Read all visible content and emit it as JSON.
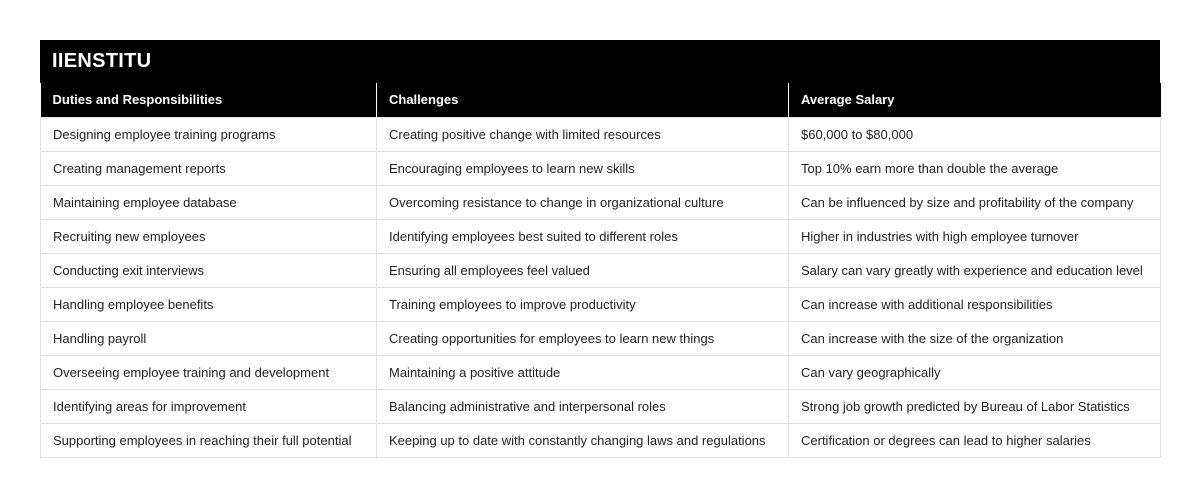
{
  "title": "IIENSTITU",
  "headers": [
    "Duties and Responsibilities",
    "Challenges",
    "Average Salary"
  ],
  "rows": [
    [
      "Designing employee training programs",
      "Creating positive change with limited resources",
      "$60,000 to $80,000"
    ],
    [
      "Creating management reports",
      "Encouraging employees to learn new skills",
      "Top 10% earn more than double the average"
    ],
    [
      "Maintaining employee database",
      "Overcoming resistance to change in organizational culture",
      "Can be influenced by size and profitability of the company"
    ],
    [
      "Recruiting new employees",
      "Identifying employees best suited to different roles",
      "Higher in industries with high employee turnover"
    ],
    [
      "Conducting exit interviews",
      "Ensuring all employees feel valued",
      "Salary can vary greatly with experience and education level"
    ],
    [
      "Handling employee benefits",
      "Training employees to improve productivity",
      "Can increase with additional responsibilities"
    ],
    [
      "Handling payroll",
      "Creating opportunities for employees to learn new things",
      "Can increase with the size of the organization"
    ],
    [
      "Overseeing employee training and development",
      "Maintaining a positive attitude",
      "Can vary geographically"
    ],
    [
      "Identifying areas for improvement",
      "Balancing administrative and interpersonal roles",
      "Strong job growth predicted by Bureau of Labor Statistics"
    ],
    [
      "Supporting employees in reaching their full potential",
      "Keeping up to date with constantly changing laws and regulations",
      "Certification or degrees can lead to higher salaries"
    ]
  ],
  "colors": {
    "header_bg": "#000000",
    "header_text": "#ffffff",
    "border": "#e2e2e2"
  }
}
